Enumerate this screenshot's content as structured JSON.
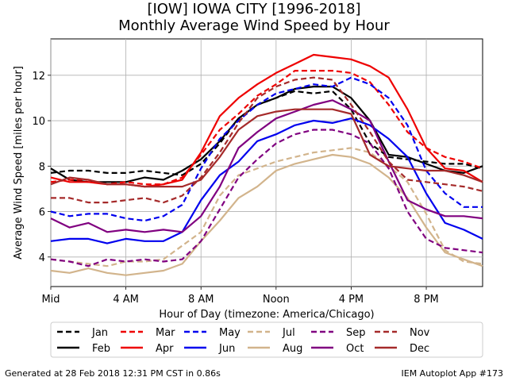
{
  "header": {
    "title_line1": "[IOW] IOWA CITY [1996-2018]",
    "title_line2": "Monthly Average Wind Speed by Hour"
  },
  "footer": {
    "left": "Generated at 28 Feb 2018 12:31 PM CST in 0.86s",
    "right": "IEM Autoplot App #173"
  },
  "chart_data": {
    "type": "line",
    "title": "[IOW] IOWA CITY [1996-2018] Monthly Average Wind Speed by Hour",
    "xlabel": "Hour of Day (timezone: America/Chicago)",
    "ylabel": "Average Wind Speed [miles per hour]",
    "xlim": [
      0,
      23
    ],
    "ylim": [
      2.7,
      13.6
    ],
    "xticks": [
      0,
      4,
      8,
      12,
      16,
      20
    ],
    "xtick_labels": [
      "Mid",
      "4 AM",
      "8 AM",
      "Noon",
      "4 PM",
      "8 PM"
    ],
    "yticks": [
      4,
      6,
      8,
      10,
      12
    ],
    "grid": true,
    "legend_placement": "bottom",
    "x": [
      0,
      1,
      2,
      3,
      4,
      5,
      6,
      7,
      8,
      9,
      10,
      11,
      12,
      13,
      14,
      15,
      16,
      17,
      18,
      19,
      20,
      21,
      22,
      23
    ],
    "series": [
      {
        "name": "Jan",
        "color": "#000000",
        "dash": true,
        "values": [
          7.7,
          7.8,
          7.8,
          7.7,
          7.7,
          7.8,
          7.7,
          7.6,
          8.1,
          9.0,
          10.1,
          10.7,
          11.0,
          11.3,
          11.2,
          11.3,
          10.5,
          9.0,
          8.4,
          8.3,
          8.2,
          8.1,
          8.1,
          7.9
        ]
      },
      {
        "name": "Feb",
        "color": "#000000",
        "dash": false,
        "values": [
          7.9,
          7.4,
          7.3,
          7.3,
          7.3,
          7.5,
          7.4,
          7.8,
          8.3,
          9.1,
          10.1,
          10.7,
          11.0,
          11.4,
          11.5,
          11.5,
          11.0,
          10.0,
          8.5,
          8.4,
          8.1,
          7.8,
          7.7,
          8.0
        ]
      },
      {
        "name": "Mar",
        "color": "#ee0000",
        "dash": true,
        "values": [
          7.3,
          7.4,
          7.4,
          7.2,
          7.3,
          7.2,
          7.2,
          7.5,
          8.5,
          9.6,
          10.3,
          11.1,
          11.6,
          12.2,
          12.2,
          12.2,
          12.1,
          11.7,
          10.7,
          9.5,
          8.8,
          8.4,
          8.2,
          7.9
        ]
      },
      {
        "name": "Apr",
        "color": "#ee0000",
        "dash": false,
        "values": [
          7.5,
          7.3,
          7.3,
          7.2,
          7.2,
          7.1,
          7.2,
          7.4,
          8.6,
          10.2,
          11.0,
          11.6,
          12.1,
          12.5,
          12.9,
          12.8,
          12.7,
          12.4,
          11.9,
          10.5,
          8.8,
          7.9,
          7.8,
          7.3
        ]
      },
      {
        "name": "May",
        "color": "#0000ee",
        "dash": true,
        "values": [
          6.0,
          5.8,
          5.9,
          5.9,
          5.7,
          5.6,
          5.8,
          6.3,
          7.9,
          9.2,
          10.0,
          10.7,
          11.2,
          11.4,
          11.6,
          11.5,
          11.9,
          11.6,
          11.0,
          9.8,
          7.8,
          6.8,
          6.2,
          6.2
        ]
      },
      {
        "name": "Jun",
        "color": "#0000ee",
        "dash": false,
        "values": [
          4.7,
          4.8,
          4.8,
          4.6,
          4.8,
          4.7,
          4.7,
          5.1,
          6.5,
          7.6,
          8.2,
          9.1,
          9.4,
          9.8,
          10.0,
          9.9,
          10.1,
          9.8,
          9.2,
          8.4,
          6.8,
          5.5,
          5.2,
          4.8
        ]
      },
      {
        "name": "Jul",
        "color": "#d2b48c",
        "dash": true,
        "values": [
          3.9,
          3.8,
          3.7,
          3.6,
          3.8,
          3.8,
          3.9,
          4.5,
          5.1,
          6.7,
          7.6,
          7.9,
          8.2,
          8.4,
          8.6,
          8.7,
          8.8,
          8.6,
          8.0,
          7.3,
          5.9,
          4.3,
          3.8,
          3.7
        ]
      },
      {
        "name": "Aug",
        "color": "#d2b48c",
        "dash": false,
        "values": [
          3.4,
          3.3,
          3.5,
          3.3,
          3.2,
          3.3,
          3.4,
          3.7,
          4.7,
          5.6,
          6.6,
          7.1,
          7.8,
          8.1,
          8.3,
          8.5,
          8.4,
          8.1,
          7.5,
          6.6,
          5.3,
          4.2,
          3.9,
          3.6
        ]
      },
      {
        "name": "Sep",
        "color": "#800080",
        "dash": true,
        "values": [
          3.9,
          3.8,
          3.6,
          3.9,
          3.8,
          3.9,
          3.8,
          3.9,
          4.7,
          6.1,
          7.5,
          8.3,
          9.0,
          9.4,
          9.6,
          9.6,
          9.4,
          9.0,
          7.9,
          6.0,
          4.8,
          4.4,
          4.3,
          4.2
        ]
      },
      {
        "name": "Oct",
        "color": "#800080",
        "dash": false,
        "values": [
          5.7,
          5.3,
          5.5,
          5.1,
          5.2,
          5.1,
          5.2,
          5.1,
          5.8,
          7.1,
          8.8,
          9.5,
          10.1,
          10.4,
          10.7,
          10.9,
          10.5,
          10.0,
          8.2,
          6.5,
          6.1,
          5.8,
          5.8,
          5.7
        ]
      },
      {
        "name": "Nov",
        "color": "#a52a2a",
        "dash": true,
        "values": [
          6.6,
          6.6,
          6.4,
          6.4,
          6.5,
          6.6,
          6.4,
          6.7,
          7.5,
          8.6,
          9.9,
          11.0,
          11.5,
          11.8,
          11.9,
          11.8,
          10.7,
          9.5,
          8.2,
          7.4,
          7.3,
          7.2,
          7.1,
          6.9
        ]
      },
      {
        "name": "Dec",
        "color": "#a52a2a",
        "dash": false,
        "values": [
          7.2,
          7.5,
          7.4,
          7.2,
          7.2,
          7.1,
          7.1,
          7.1,
          7.4,
          8.4,
          9.6,
          10.2,
          10.4,
          10.5,
          10.5,
          10.5,
          10.3,
          8.5,
          8.0,
          7.9,
          7.8,
          7.8,
          7.6,
          7.3
        ]
      }
    ]
  }
}
